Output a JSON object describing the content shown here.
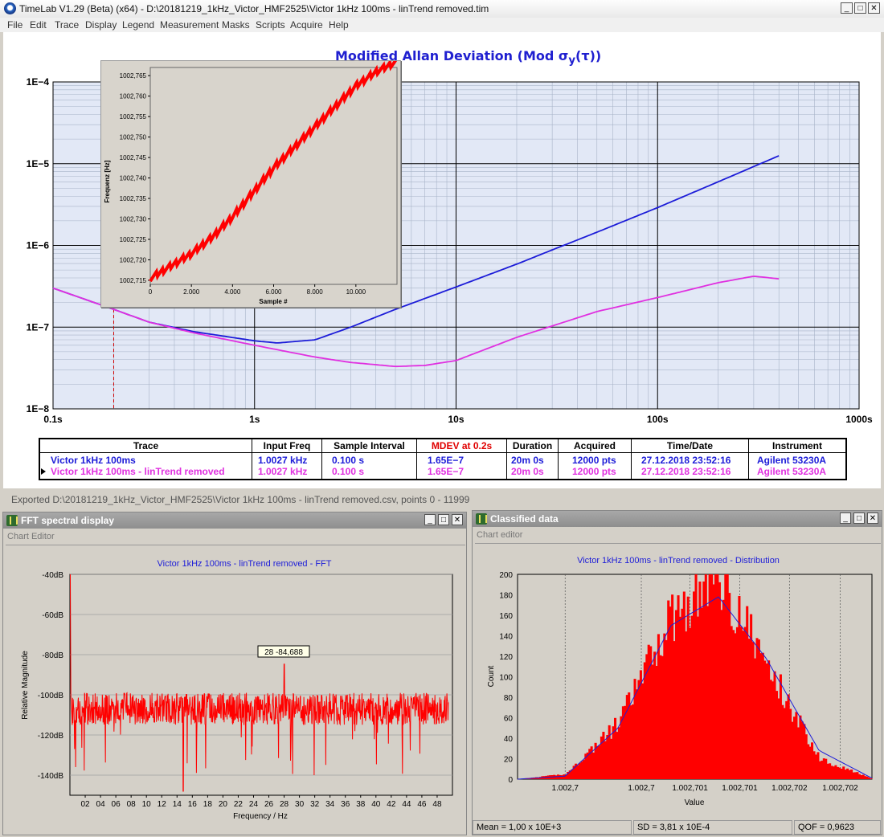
{
  "window": {
    "title": "TimeLab V1.29 (Beta) (x64) - D:\\20181219_1kHz_Victor_HMF2525\\Victor 1kHz 100ms - linTrend removed.tim"
  },
  "menu": [
    "File",
    "Edit",
    "Trace",
    "Display",
    "Legend",
    "Measurement",
    "Masks",
    "Scripts",
    "Acquire",
    "Help"
  ],
  "adev_plot": {
    "title_prefix": "Modified Allan Deviation (Mod σ",
    "title_sub": "y",
    "title_suffix": "(τ))",
    "y_ticks": [
      "1E−4",
      "1E−5",
      "1E−6",
      "1E−7",
      "1E−8"
    ],
    "x_ticks": [
      "0.1s",
      "1s",
      "10s",
      "100s",
      "1000s"
    ],
    "marker_tau": 0.2
  },
  "inset_plot": {
    "ylabel": "Frequenz [Hz]",
    "xlabel": "Sample #",
    "y_ticks": [
      "1002,765",
      "1002,760",
      "1002,755",
      "1002,750",
      "1002,745",
      "1002,740",
      "1002,735",
      "1002,730",
      "1002,725",
      "1002,720",
      "1002,715"
    ],
    "x_ticks": [
      "0",
      "2.000",
      "4.000",
      "6.000",
      "8.000",
      "10.000"
    ]
  },
  "trace_table": {
    "headers": [
      "Trace",
      "Input Freq",
      "Sample Interval",
      "MDEV at 0.2s",
      "Duration",
      "Acquired",
      "Time/Date",
      "Instrument"
    ],
    "rows": [
      {
        "trace": "Victor 1kHz 100ms",
        "freq": "1.0027 kHz",
        "interval": "0.100 s",
        "mdev": "1.65E−7",
        "duration": "20m 0s",
        "acquired": "12000 pts",
        "date": "27.12.2018 23:52:16",
        "instrument": "Agilent 53230A"
      },
      {
        "trace": "Victor 1kHz 100ms - linTrend removed",
        "freq": "1.0027 kHz",
        "interval": "0.100 s",
        "mdev": "1.65E−7",
        "duration": "20m 0s",
        "acquired": "12000 pts",
        "date": "27.12.2018 23:52:16",
        "instrument": "Agilent 53230A"
      }
    ]
  },
  "status": {
    "text": "Exported D:\\20181219_1kHz_Victor_HMF2525\\Victor 1kHz 100ms - linTrend removed.csv, points 0 - 11999"
  },
  "fft_window": {
    "title": "FFT spectral display",
    "chart_editor": "Chart Editor",
    "plot_title": "Victor 1kHz 100ms - linTrend removed  -  FFT",
    "ylabel": "Relative Magnitude",
    "xlabel": "Frequency / Hz",
    "y_ticks": [
      "-40dB",
      "-60dB",
      "-80dB",
      "-100dB",
      "-120dB",
      "-140dB"
    ],
    "x_ticks": [
      "02",
      "04",
      "06",
      "08",
      "10",
      "12",
      "14",
      "16",
      "18",
      "20",
      "22",
      "24",
      "26",
      "28",
      "30",
      "32",
      "34",
      "36",
      "38",
      "40",
      "42",
      "44",
      "46",
      "48"
    ],
    "tooltip": "28 -84,688"
  },
  "dist_window": {
    "title": "Classified data",
    "chart_editor": "Chart editor",
    "plot_title": "Victor 1kHz 100ms - linTrend removed  -  Distribution",
    "ylabel": "Count",
    "xlabel": "Value",
    "y_ticks": [
      "200",
      "180",
      "160",
      "140",
      "120",
      "100",
      "80",
      "60",
      "40",
      "20",
      "0"
    ],
    "x_ticks": [
      "1.002,7",
      "1.002,7",
      "1.002,701",
      "1.002,701",
      "1.002,702",
      "1.002,702"
    ],
    "mean": "Mean = 1,00 x 10E+3",
    "sd": "SD = 3,81 x 10E-4",
    "qof": "QOF = 0,9623"
  },
  "colors": {
    "blue_trace": "#1c1cd8",
    "magenta_trace": "#e030e0",
    "red": "#ff0000",
    "mdev_header": "#e00000"
  },
  "chart_data": [
    {
      "type": "line",
      "title": "Modified Allan Deviation (Mod σy(τ))",
      "xscale": "log",
      "yscale": "log",
      "xlim": [
        0.1,
        1000
      ],
      "ylim": [
        1e-08,
        0.0001
      ],
      "grid": true,
      "series": [
        {
          "name": "Victor 1kHz 100ms",
          "x": [
            0.1,
            0.2,
            0.3,
            0.5,
            1.0,
            1.3,
            2.0,
            3.0,
            5.0,
            10,
            20,
            30,
            50,
            100,
            200,
            400
          ],
          "y": [
            3e-07,
            1.65e-07,
            1.15e-07,
            8.8e-08,
            6.8e-08,
            6.4e-08,
            7e-08,
            1e-07,
            1.65e-07,
            3.1e-07,
            5.9e-07,
            8.8e-07,
            1.45e-06,
            2.9e-06,
            6e-06,
            1.25e-05
          ]
        },
        {
          "name": "Victor 1kHz 100ms - linTrend removed",
          "x": [
            0.1,
            0.2,
            0.3,
            0.5,
            1.0,
            2.0,
            3.0,
            5.0,
            7.0,
            10,
            20,
            50,
            100,
            200,
            300,
            400
          ],
          "y": [
            3e-07,
            1.65e-07,
            1.15e-07,
            8.5e-08,
            6e-08,
            4.3e-08,
            3.7e-08,
            3.3e-08,
            3.4e-08,
            3.9e-08,
            7.5e-08,
            1.55e-07,
            2.3e-07,
            3.5e-07,
            4.2e-07,
            3.9e-07
          ]
        }
      ]
    },
    {
      "type": "line",
      "xlabel": "Sample #",
      "ylabel": "Frequenz [Hz]",
      "xlim": [
        0,
        12000
      ],
      "ylim": [
        1002.714,
        1002.767
      ],
      "series": [
        {
          "x": [
            0,
            1000,
            2000,
            3000,
            4000,
            5000,
            6000,
            7000,
            8000,
            9000,
            10000,
            11000,
            11999
          ],
          "y": [
            1002.7155,
            1002.7185,
            1002.7215,
            1002.7255,
            1002.7305,
            1002.7365,
            1002.7425,
            1002.7475,
            1002.7525,
            1002.7575,
            1002.7625,
            1002.766,
            1002.7685
          ]
        }
      ]
    },
    {
      "type": "line",
      "title": "Victor 1kHz 100ms - linTrend removed  -  FFT",
      "xlabel": "Frequency / Hz",
      "ylabel": "Relative Magnitude",
      "xlim": [
        0,
        50
      ],
      "ylim": [
        -150,
        -40
      ],
      "series": [
        {
          "x": [
            0.05,
            0.3,
            1,
            10,
            20,
            28,
            30,
            40,
            49.5
          ],
          "y": [
            -40,
            -100,
            -108,
            -107,
            -108,
            -84.688,
            -107,
            -108,
            -108
          ]
        }
      ]
    },
    {
      "type": "bar",
      "title": "Victor 1kHz 100ms - linTrend removed  -  Distribution",
      "xlabel": "Value",
      "ylabel": "Count",
      "ylim": [
        0,
        200
      ],
      "series": [
        {
          "name": "histogram",
          "x": [
            1002.69905,
            1002.6995,
            1002.7,
            1002.7005,
            1002.70095,
            1002.7014,
            1002.7019,
            1002.7024
          ],
          "y": [
            0,
            5,
            55,
            160,
            200,
            110,
            20,
            0
          ]
        },
        {
          "name": "normal fit",
          "x": [
            1002.69905,
            1002.6995,
            1002.7,
            1002.7005,
            1002.70095,
            1002.7014,
            1002.7019,
            1002.7024
          ],
          "y": [
            0,
            3,
            50,
            150,
            178,
            118,
            28,
            1
          ]
        }
      ]
    }
  ]
}
